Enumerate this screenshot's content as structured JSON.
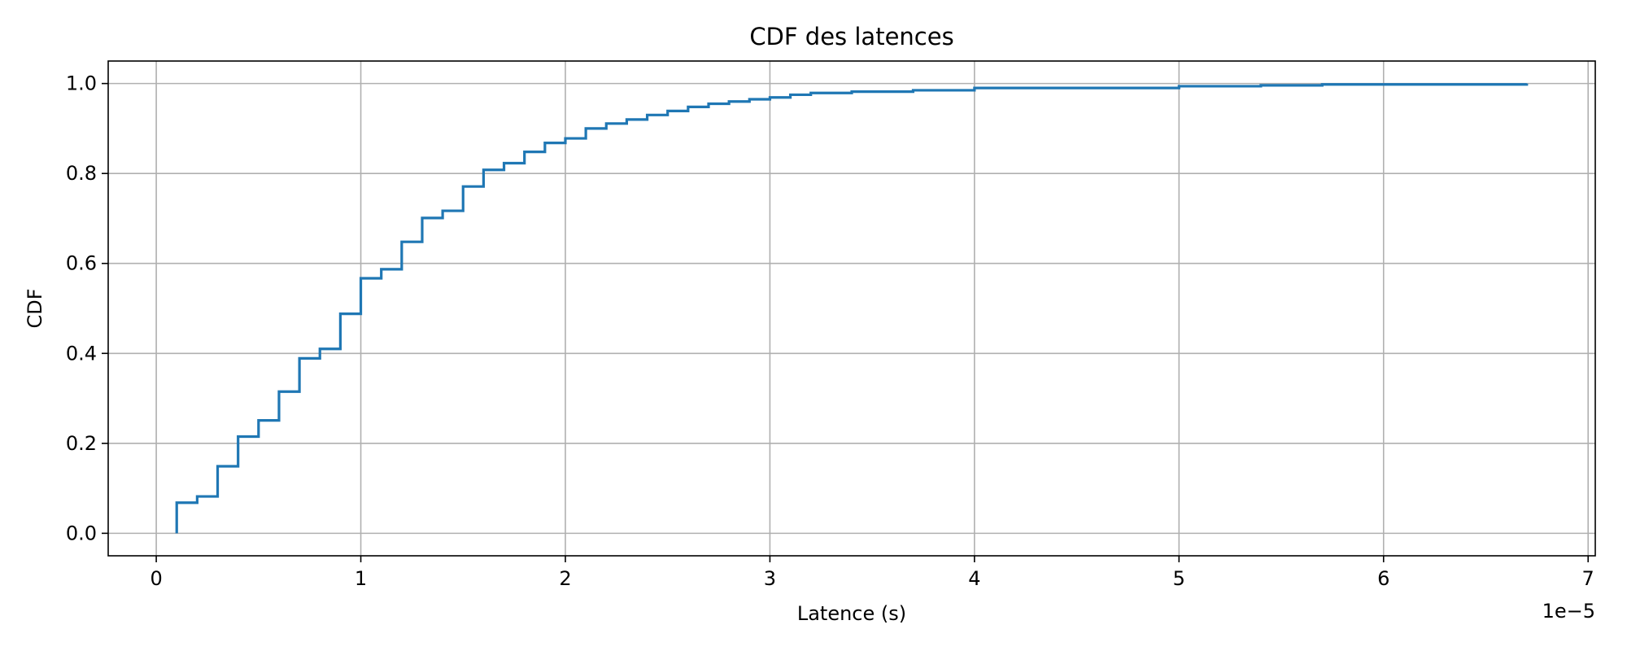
{
  "chart_data": {
    "type": "line",
    "drawstyle": "steps-post",
    "title": "CDF des latences",
    "xlabel": "Latence (s)",
    "ylabel": "CDF",
    "x_offset_label": "1e−5",
    "x_tick_values": [
      0,
      1,
      2,
      3,
      4,
      5,
      6,
      7
    ],
    "x_tick_labels": [
      "0",
      "1",
      "2",
      "3",
      "4",
      "5",
      "6",
      "7"
    ],
    "y_tick_values": [
      0.0,
      0.2,
      0.4,
      0.6,
      0.8,
      1.0
    ],
    "y_tick_labels": [
      "0.0",
      "0.2",
      "0.4",
      "0.6",
      "0.8",
      "1.0"
    ],
    "xlim": [
      -0.235,
      7.035
    ],
    "ylim": [
      -0.05,
      1.05
    ],
    "grid": true,
    "line_color": "#1f77b4",
    "grid_color": "#b0b0b0",
    "series": [
      {
        "x": [
          0.1,
          0.1,
          0.2,
          0.3,
          0.4,
          0.5,
          0.6,
          0.7,
          0.8,
          0.9,
          1.0,
          1.1,
          1.2,
          1.3,
          1.4,
          1.5,
          1.6,
          1.7,
          1.8,
          1.9,
          2.0,
          2.1,
          2.2,
          2.3,
          2.4,
          2.5,
          2.6,
          2.7,
          2.8,
          2.9,
          3.0,
          3.1,
          3.2,
          3.4,
          3.7,
          4.0,
          5.0,
          5.4,
          5.7,
          6.7
        ],
        "y": [
          0.0,
          0.068,
          0.082,
          0.149,
          0.215,
          0.251,
          0.315,
          0.389,
          0.41,
          0.488,
          0.567,
          0.587,
          0.648,
          0.701,
          0.717,
          0.771,
          0.808,
          0.823,
          0.848,
          0.868,
          0.878,
          0.9,
          0.911,
          0.92,
          0.93,
          0.939,
          0.948,
          0.955,
          0.96,
          0.965,
          0.969,
          0.975,
          0.979,
          0.982,
          0.985,
          0.99,
          0.994,
          0.996,
          0.998,
          1.0
        ]
      }
    ]
  }
}
